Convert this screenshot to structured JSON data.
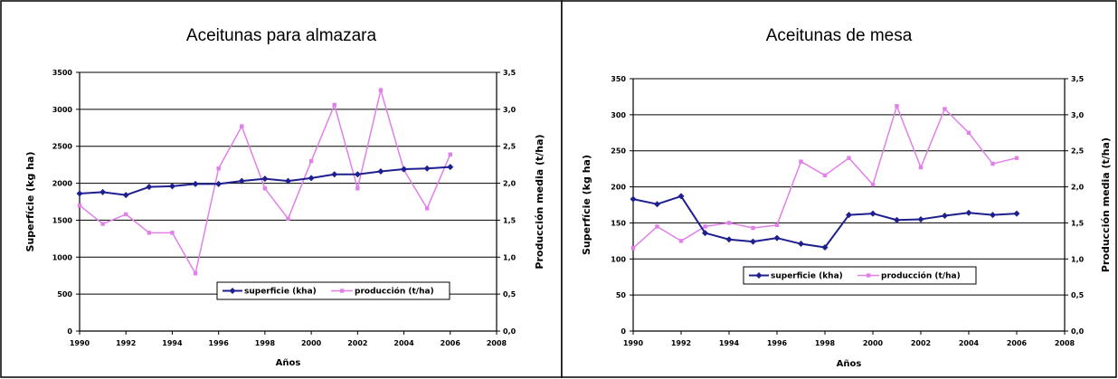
{
  "chart_data": [
    {
      "type": "line",
      "title": "Aceitunas para almazara",
      "xlabel": "Años",
      "ylabel": "Superfície (kg ha)",
      "y2label": "Producción media (t/ha)",
      "xlim": [
        1990,
        2008
      ],
      "xticks": [
        "1990",
        "1992",
        "1994",
        "1996",
        "1998",
        "2000",
        "2002",
        "2004",
        "2006",
        "2008"
      ],
      "ylim": [
        0,
        3500
      ],
      "yticks": [
        "0",
        "500",
        "1000",
        "1500",
        "2000",
        "2500",
        "3000",
        "3500"
      ],
      "y2lim": [
        0,
        3.5
      ],
      "y2ticks": [
        "0,0",
        "0,5",
        "1,0",
        "1,5",
        "2,0",
        "2,5",
        "3,0",
        "3,5"
      ],
      "grid": true,
      "legend_position": "bottom-center",
      "x": [
        1990,
        1991,
        1992,
        1993,
        1994,
        1995,
        1996,
        1997,
        1998,
        1999,
        2000,
        2001,
        2002,
        2003,
        2004,
        2005,
        2006
      ],
      "series": [
        {
          "name": "superficie (kha)",
          "axis": "left",
          "color": "#1f1f8f",
          "marker": "diamond",
          "values": [
            1860,
            1880,
            1840,
            1950,
            1960,
            1990,
            1990,
            2030,
            2060,
            2030,
            2070,
            2120,
            2120,
            2160,
            2190,
            2200,
            2220
          ]
        },
        {
          "name": "producción (t/ha)",
          "axis": "right",
          "color": "#e080e8",
          "marker": "square",
          "values": [
            1.7,
            1.45,
            1.58,
            1.33,
            1.33,
            0.78,
            2.2,
            2.77,
            1.93,
            1.52,
            2.3,
            3.06,
            1.93,
            3.26,
            2.18,
            1.66,
            2.39
          ]
        }
      ]
    },
    {
      "type": "line",
      "title": "Aceitunas de mesa",
      "xlabel": "Años",
      "ylabel": "Superfície (kg ha)",
      "y2label": "Producción media (t/ha)",
      "xlim": [
        1990,
        2008
      ],
      "xticks": [
        "1990",
        "1992",
        "1994",
        "1996",
        "1998",
        "2000",
        "2002",
        "2004",
        "2006",
        "2008"
      ],
      "ylim": [
        0,
        350
      ],
      "yticks": [
        "0",
        "50",
        "100",
        "150",
        "200",
        "250",
        "300",
        "350"
      ],
      "y2lim": [
        0,
        3.5
      ],
      "y2ticks": [
        "0,0",
        "0,5",
        "1,0",
        "1,5",
        "2,0",
        "2,5",
        "3,0",
        "3,5"
      ],
      "grid": true,
      "legend_position": "bottom-center",
      "x": [
        1990,
        1991,
        1992,
        1993,
        1994,
        1995,
        1996,
        1997,
        1998,
        1999,
        2000,
        2001,
        2002,
        2003,
        2004,
        2005,
        2006
      ],
      "series": [
        {
          "name": "superficie (kha)",
          "axis": "left",
          "color": "#1f1f8f",
          "marker": "diamond",
          "values": [
            183,
            176,
            187,
            136,
            127,
            124,
            129,
            121,
            116,
            161,
            163,
            154,
            155,
            160,
            164,
            161,
            163
          ]
        },
        {
          "name": "producción (t/ha)",
          "axis": "right",
          "color": "#e080e8",
          "marker": "square",
          "values": [
            1.15,
            1.45,
            1.25,
            1.45,
            1.5,
            1.43,
            1.47,
            2.35,
            2.16,
            2.4,
            2.03,
            3.12,
            2.27,
            3.08,
            2.75,
            2.32,
            2.4
          ]
        }
      ]
    }
  ]
}
